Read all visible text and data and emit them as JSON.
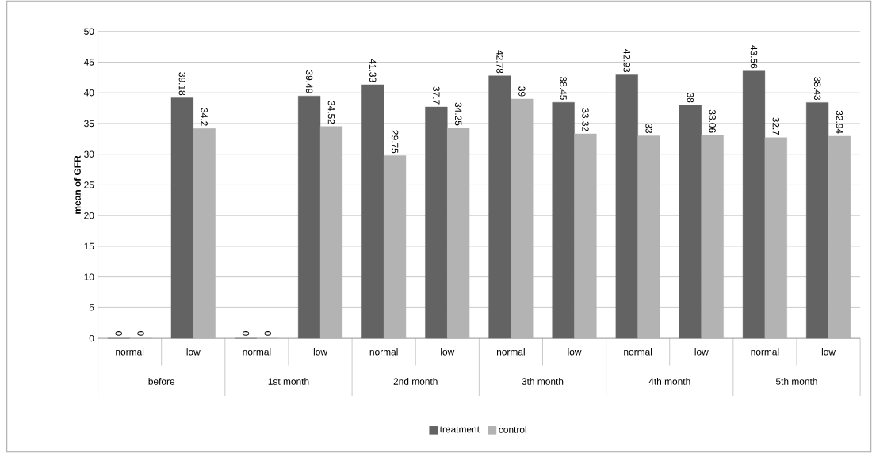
{
  "chart_data": {
    "type": "bar",
    "ylabel": "mean of GFR",
    "categories": [
      "normal",
      "low",
      "normal",
      "low",
      "normal",
      "low",
      "normal",
      "low",
      "normal",
      "low",
      "normal",
      "low"
    ],
    "annotations": [
      "before",
      "1st month",
      "2nd month",
      "3th month",
      "4th month",
      "5th month"
    ],
    "series": [
      {
        "name": "treatment",
        "color": "#636363",
        "values": [
          0,
          39.18,
          0,
          39.49,
          41.33,
          37.7,
          42.78,
          38.45,
          42.93,
          38,
          43.56,
          38.43
        ]
      },
      {
        "name": "control",
        "color": "#b3b3b3",
        "values": [
          0,
          34.2,
          0,
          34.52,
          29.75,
          34.25,
          39,
          33.32,
          33,
          33.06,
          32.7,
          32.94
        ]
      }
    ],
    "ylim": [
      0,
      50
    ],
    "yticks": [
      0,
      5,
      10,
      15,
      20,
      25,
      30,
      35,
      40,
      45,
      50
    ],
    "grid": "y",
    "legend": "bottom",
    "data_labels": true
  }
}
